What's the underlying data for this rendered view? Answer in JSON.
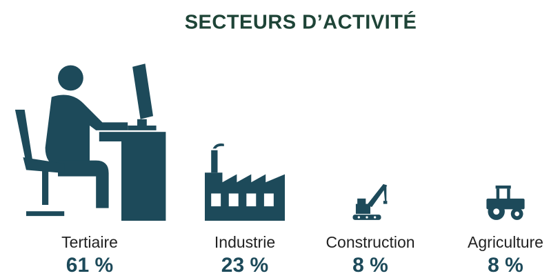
{
  "chart_data": {
    "type": "pictogram",
    "title": "SECTEURS D’ACTIVITÉ",
    "categories": [
      "Tertiaire",
      "Industrie",
      "Construction",
      "Agriculture"
    ],
    "values": [
      61,
      23,
      8,
      8
    ],
    "value_labels": [
      "61 %",
      "23 %",
      "8 %",
      "8 %"
    ],
    "color": "#1d4a5a"
  }
}
